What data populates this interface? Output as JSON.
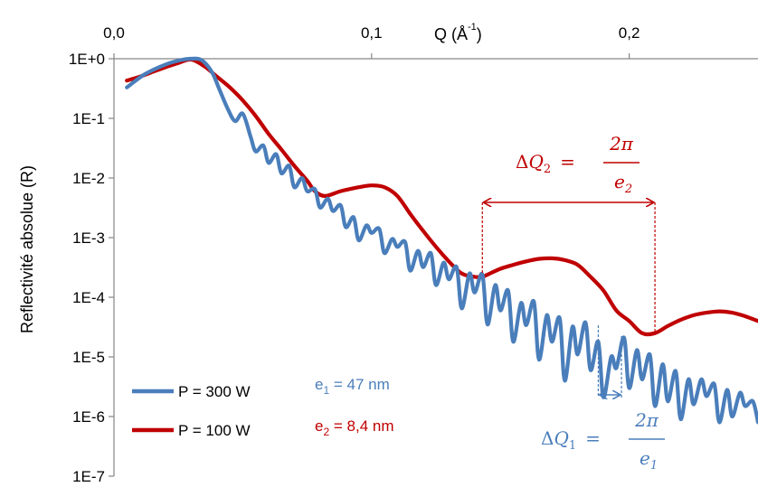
{
  "chart_data": {
    "type": "line",
    "y_scale": "log",
    "title": "",
    "xlabel_base": "Q (Å",
    "xlabel_sup": "-1",
    "xlabel_tail": ")",
    "ylabel": "Reflectivité absolue (R)",
    "x_axis_position": "top",
    "xlim": [
      0,
      0.25
    ],
    "ylim": [
      1e-07,
      1
    ],
    "x_ticks": [
      0.0,
      0.1,
      0.2
    ],
    "x_tick_labels": [
      "0,0",
      "0,1",
      "0,2"
    ],
    "y_ticks": [
      1,
      0.1,
      0.01,
      0.001,
      0.0001,
      1e-05,
      1e-06,
      1e-07
    ],
    "y_tick_labels": [
      "1E+0",
      "1E-1",
      "1E-2",
      "1E-3",
      "1E-4",
      "1E-5",
      "1E-6",
      "1E-7"
    ],
    "grid": false,
    "legend_position": "bottom-left",
    "series": [
      {
        "name": "P = 300 W",
        "color": "#4a7ebb",
        "x": [
          0.005,
          0.012,
          0.02,
          0.026,
          0.03,
          0.034,
          0.038,
          0.041,
          0.044,
          0.047,
          0.05,
          0.053,
          0.055,
          0.058,
          0.06,
          0.063,
          0.065,
          0.068,
          0.07,
          0.073,
          0.075,
          0.078,
          0.08,
          0.083,
          0.085,
          0.088,
          0.09,
          0.093,
          0.095,
          0.098,
          0.1,
          0.103,
          0.105,
          0.108,
          0.11,
          0.113,
          0.115,
          0.118,
          0.12,
          0.123,
          0.125,
          0.128,
          0.13,
          0.133,
          0.135,
          0.138,
          0.14,
          0.143,
          0.145,
          0.148,
          0.15,
          0.153,
          0.155,
          0.158,
          0.16,
          0.163,
          0.165,
          0.168,
          0.17,
          0.173,
          0.175,
          0.178,
          0.18,
          0.183,
          0.185,
          0.188,
          0.19,
          0.193,
          0.195,
          0.198,
          0.2,
          0.203,
          0.205,
          0.208,
          0.21,
          0.213,
          0.215,
          0.218,
          0.22,
          0.223,
          0.225,
          0.228,
          0.23,
          0.233,
          0.235,
          0.238,
          0.24,
          0.243,
          0.245,
          0.248,
          0.25
        ],
        "y": [
          0.33,
          0.55,
          0.8,
          0.95,
          1.0,
          0.95,
          0.6,
          0.3,
          0.15,
          0.09,
          0.12,
          0.05,
          0.028,
          0.035,
          0.018,
          0.025,
          0.012,
          0.016,
          0.007,
          0.01,
          0.006,
          0.0065,
          0.0032,
          0.0045,
          0.0028,
          0.0035,
          0.0015,
          0.0022,
          0.0009,
          0.0016,
          0.0012,
          0.0014,
          0.00055,
          0.00095,
          0.0007,
          0.00085,
          0.00028,
          0.0006,
          0.00032,
          0.00055,
          0.00016,
          0.00038,
          0.0002,
          0.00032,
          6.5e-05,
          0.00025,
          0.00012,
          0.00024,
          3.5e-05,
          0.00016,
          6e-05,
          0.00013,
          1.8e-05,
          8e-05,
          3.4e-05,
          8.5e-05,
          9e-06,
          5e-05,
          1.8e-05,
          4.5e-05,
          4e-06,
          3.2e-05,
          1.1e-05,
          3.8e-05,
          6e-06,
          1.8e-05,
          2.1e-06,
          1e-05,
          6.5e-06,
          2.1e-05,
          3e-06,
          1.3e-05,
          4.2e-06,
          1.1e-05,
          1.5e-06,
          7.5e-06,
          1.8e-06,
          5.8e-06,
          9e-07,
          4.2e-06,
          1.6e-06,
          4.2e-06,
          2.2e-06,
          3.5e-06,
          8e-07,
          2.8e-06,
          1e-06,
          2.5e-06,
          1.5e-06,
          1.8e-06,
          8e-07
        ]
      },
      {
        "name": "P = 100 W",
        "color": "#c00000",
        "x": [
          0.005,
          0.01,
          0.015,
          0.02,
          0.025,
          0.03,
          0.035,
          0.04,
          0.045,
          0.05,
          0.055,
          0.06,
          0.065,
          0.07,
          0.075,
          0.078,
          0.082,
          0.088,
          0.095,
          0.1,
          0.105,
          0.11,
          0.115,
          0.12,
          0.125,
          0.13,
          0.135,
          0.14,
          0.143,
          0.145,
          0.15,
          0.155,
          0.16,
          0.165,
          0.17,
          0.175,
          0.18,
          0.185,
          0.19,
          0.195,
          0.2,
          0.205,
          0.21,
          0.215,
          0.22,
          0.225,
          0.23,
          0.235,
          0.24,
          0.245,
          0.25
        ],
        "y": [
          0.43,
          0.5,
          0.6,
          0.72,
          0.85,
          0.97,
          0.75,
          0.5,
          0.33,
          0.2,
          0.11,
          0.055,
          0.03,
          0.016,
          0.009,
          0.006,
          0.005,
          0.006,
          0.007,
          0.0075,
          0.007,
          0.005,
          0.0025,
          0.0013,
          0.0007,
          0.0004,
          0.00025,
          0.00022,
          0.00022,
          0.00024,
          0.0003,
          0.00035,
          0.0004,
          0.00044,
          0.00045,
          0.00042,
          0.00035,
          0.00022,
          0.00013,
          6e-05,
          4e-05,
          2.5e-05,
          2.5e-05,
          3.3e-05,
          4.2e-05,
          5e-05,
          5.5e-05,
          5.8e-05,
          5.5e-05,
          4.8e-05,
          4e-05
        ]
      }
    ],
    "annotations": {
      "e1_label": "e",
      "e1_sub": "1",
      "e1_value": " = 47 nm",
      "e2_label": "e",
      "e2_sub": "2",
      "e2_value": " = 8,4 nm",
      "dq1": {
        "delta": "Δ",
        "q": "Q",
        "sub": "1",
        "eq": "=",
        "num": "2π",
        "den": "e",
        "den_sub": "1",
        "x_from": 0.188,
        "x_to": 0.197,
        "color": "#4a7ebb"
      },
      "dq2": {
        "delta": "Δ",
        "q": "Q",
        "sub": "2",
        "eq": "=",
        "num": "2π",
        "den": "e",
        "den_sub": "2",
        "x_from": 0.143,
        "x_to": 0.21,
        "color": "#c00000"
      }
    }
  }
}
